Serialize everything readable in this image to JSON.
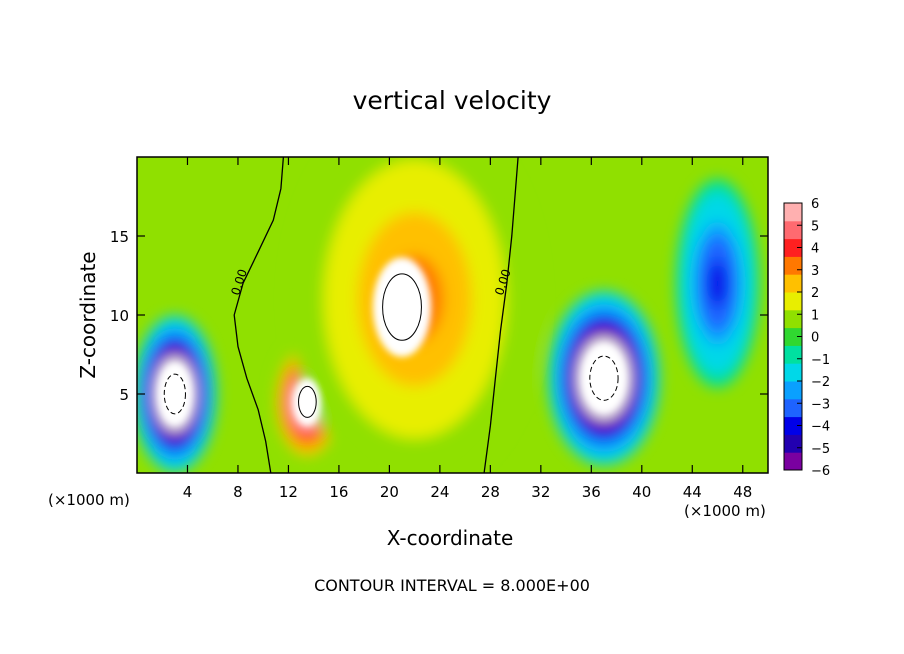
{
  "chart_data": {
    "type": "heatmap",
    "title": "vertical velocity",
    "xlabel": "X-coordinate",
    "ylabel": "Z-coordinate",
    "x_unit_left": "(×1000 m)",
    "x_unit_right": "(×1000 m)",
    "xlim": [
      0,
      50
    ],
    "ylim": [
      0,
      20
    ],
    "x_ticks": [
      4,
      8,
      12,
      16,
      20,
      24,
      28,
      32,
      36,
      40,
      44,
      48
    ],
    "y_ticks": [
      5,
      10,
      15
    ],
    "contour_interval_text": "CONTOUR INTERVAL = 8.000E+00",
    "zero_contour_labels": [
      "0.00",
      "0.00"
    ],
    "colorbar": {
      "ticks": [
        6,
        5,
        4,
        3,
        2,
        1,
        0,
        -1,
        -2,
        -3,
        -4,
        -5,
        -6
      ],
      "tick_labels": [
        "6",
        "5",
        "4",
        "3",
        "2",
        "1",
        "0",
        "−1",
        "−2",
        "−3",
        "−4",
        "−5",
        "−6"
      ],
      "colors": [
        "#7a00a0",
        "#2200b0",
        "#0000e8",
        "#1e63ff",
        "#0aa0ff",
        "#00d8e8",
        "#00e0a0",
        "#30d830",
        "#90e000",
        "#e8ee00",
        "#ffc000",
        "#ff7800",
        "#ff2020",
        "#ff6a70",
        "#ffb0b0"
      ]
    },
    "features": [
      {
        "name": "updraft core",
        "cx": 21,
        "cz": 10.5,
        "rx": 5.5,
        "rz": 7.5,
        "value": 12
      },
      {
        "name": "updraft lower lobe",
        "cx": 13.5,
        "cz": 4.5,
        "rx": 2.5,
        "rz": 3.5,
        "value": 7
      },
      {
        "name": "updraft shell",
        "cx": 22,
        "cz": 11,
        "rx": 9,
        "rz": 11,
        "value": 3
      },
      {
        "name": "left downdraft",
        "cx": 3,
        "cz": 5,
        "rx": 3,
        "rz": 4.5,
        "value": -9
      },
      {
        "name": "right downdraft",
        "cx": 37,
        "cz": 6,
        "rx": 4,
        "rz": 5,
        "value": -9
      },
      {
        "name": "far right downdraft",
        "cx": 46,
        "cz": 12,
        "rx": 3,
        "rz": 6,
        "value": -4
      }
    ]
  }
}
